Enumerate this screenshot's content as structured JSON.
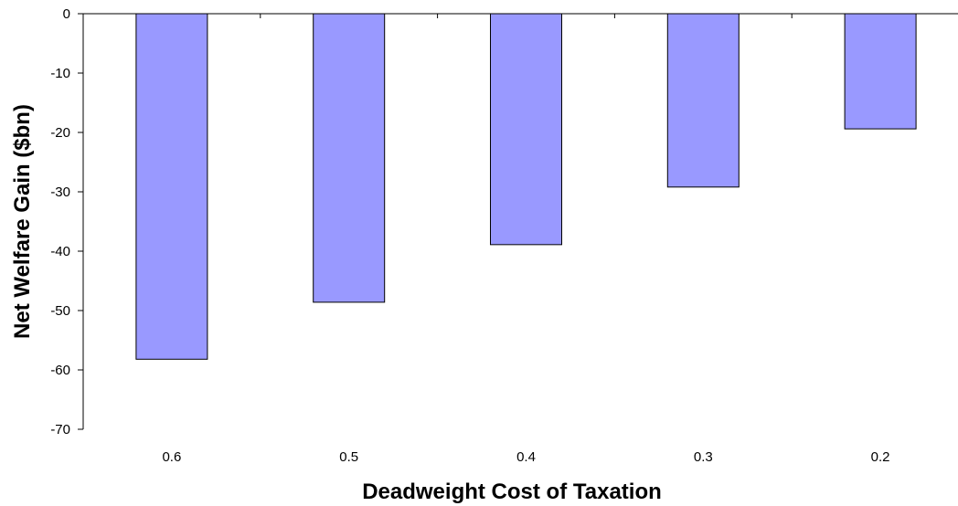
{
  "chart_data": {
    "type": "bar",
    "title": "",
    "xlabel": "Deadweight Cost of Taxation",
    "ylabel": "Net Welfare Gain ($bn)",
    "categories": [
      "0.6",
      "0.5",
      "0.4",
      "0.3",
      "0.2"
    ],
    "values": [
      -58.2,
      -48.6,
      -38.9,
      -29.2,
      -19.4
    ],
    "ylim": [
      -70,
      0
    ],
    "yticks": [
      0,
      -10,
      -20,
      -30,
      -40,
      -50,
      -60,
      -70
    ],
    "grid": false,
    "legend": "none"
  },
  "colors": {
    "bar_fill": "#9999ff",
    "bar_stroke": "#000000",
    "axis": "#000000",
    "background": "#ffffff"
  }
}
